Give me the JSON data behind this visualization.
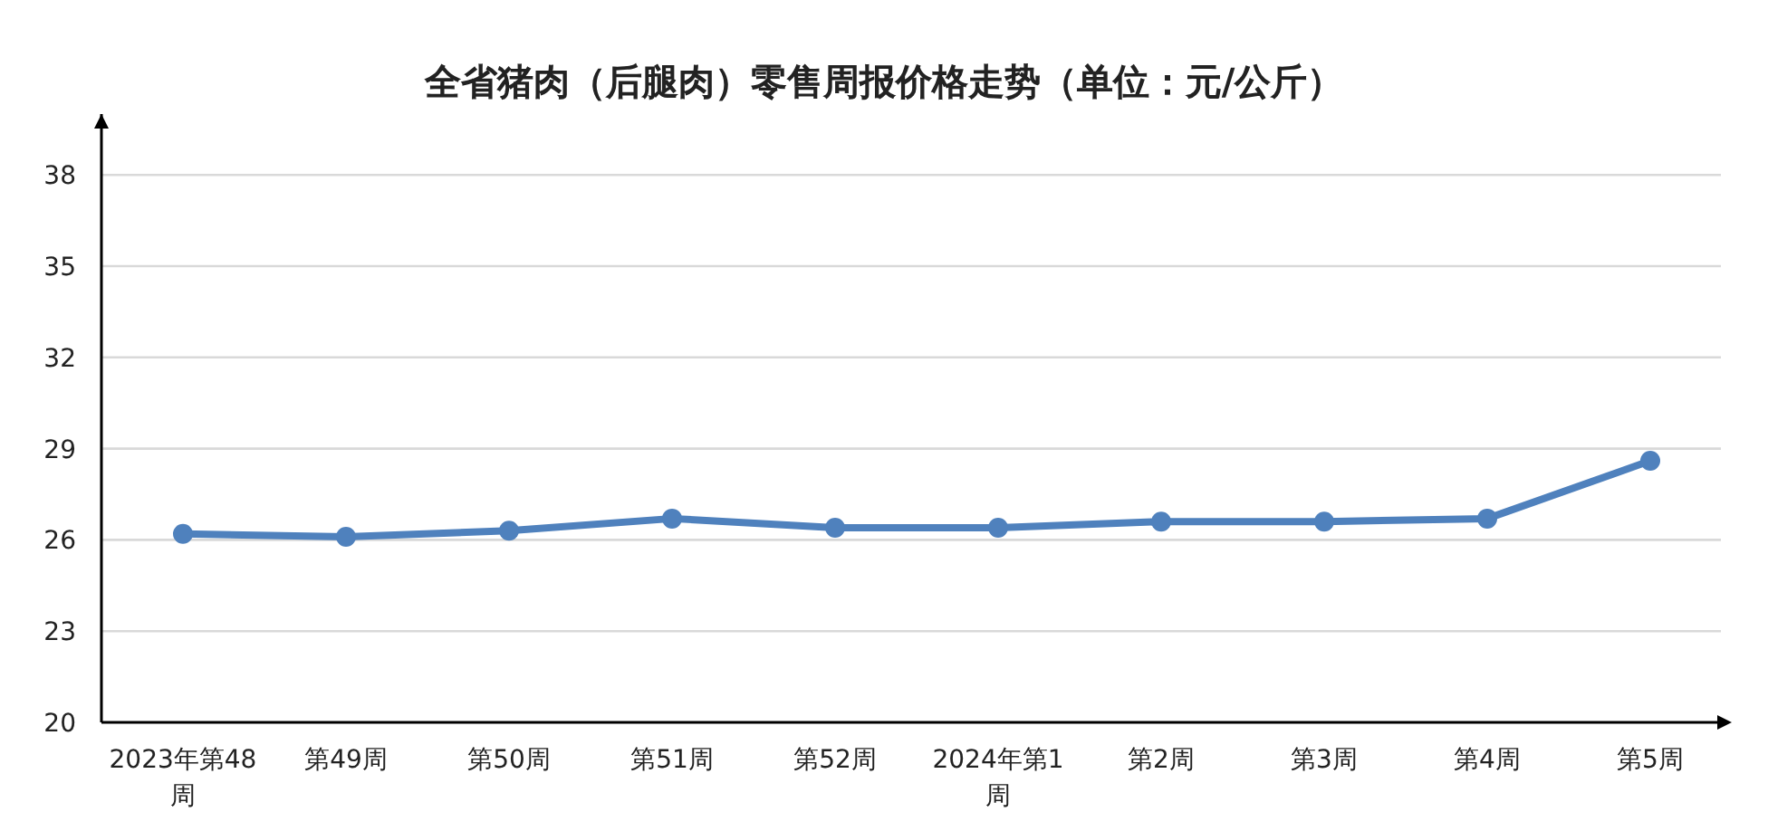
{
  "chart_data": {
    "type": "line",
    "title": "全省猪肉（后腿肉）零售周报价格走势（单位：元/公斤）",
    "categories": [
      "2023年第48周",
      "第49周",
      "第50周",
      "第51周",
      "第52周",
      "2024年第1周",
      "第2周",
      "第3周",
      "第4周",
      "第5周"
    ],
    "series": [
      {
        "color": "#4f81bd",
        "values": [
          26.2,
          26.1,
          26.3,
          26.7,
          26.4,
          26.4,
          26.6,
          26.6,
          26.7,
          28.6
        ]
      }
    ],
    "ylim": [
      20,
      40
    ],
    "yticks": [
      20,
      23,
      26,
      29,
      32,
      35,
      38
    ],
    "grid": "y",
    "marker": "circle",
    "line_style": "solid"
  }
}
